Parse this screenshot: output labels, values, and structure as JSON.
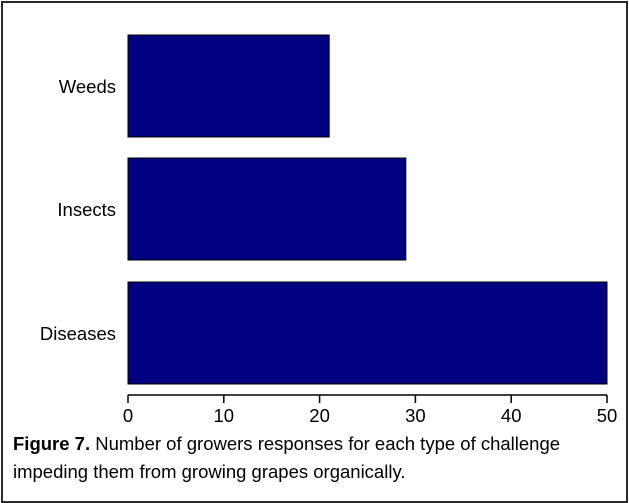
{
  "figure": {
    "caption_label": "Figure 7.",
    "caption_text": " Number of growers responses for each type of challenge impeding them from growing grapes organically."
  },
  "chart_data": {
    "type": "bar",
    "orientation": "horizontal",
    "categories": [
      "Weeds",
      "Insects",
      "Diseases"
    ],
    "values": [
      21,
      29,
      50
    ],
    "xlim": [
      0,
      50
    ],
    "xticks": [
      0,
      10,
      20,
      30,
      40,
      50
    ],
    "grid": false,
    "legend": "none",
    "bar_color": "#000080",
    "bar_edge_color": "#000000"
  }
}
